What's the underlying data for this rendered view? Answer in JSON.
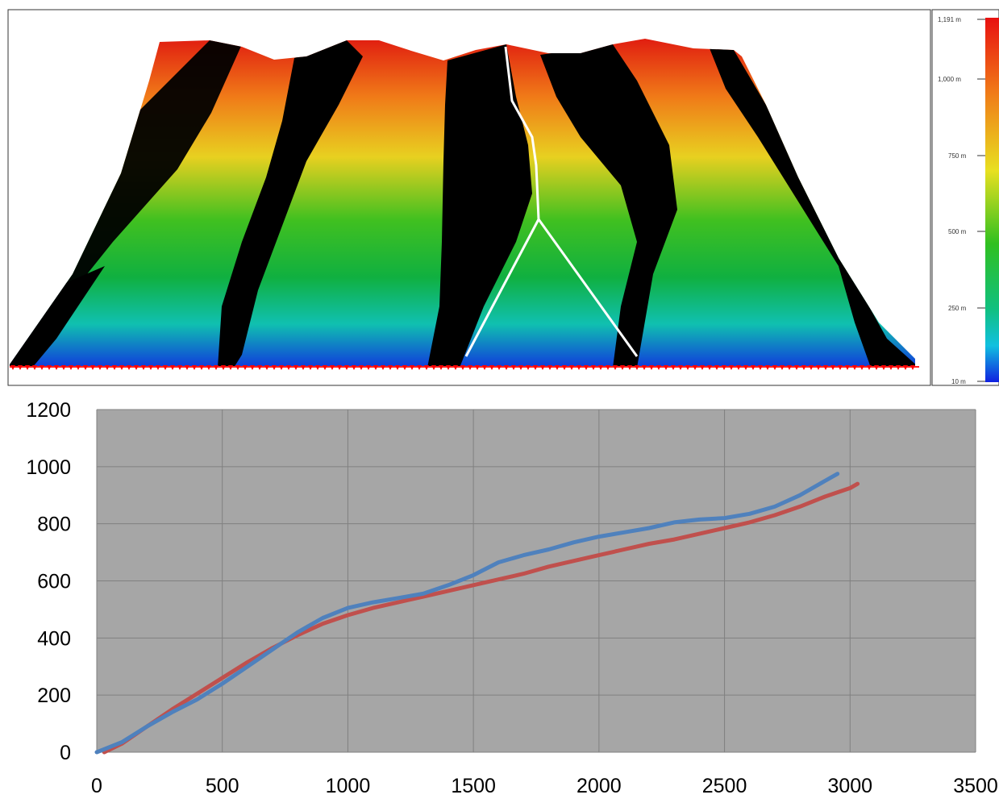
{
  "colorbar": {
    "labels": [
      "1,191 m",
      "1,000 m",
      "750 m",
      "500 m",
      "250 m",
      "10 m"
    ]
  },
  "colors": {
    "plot_background": "#a6a6a6",
    "grid": "#808080",
    "series_blue": "#4f81bd",
    "series_red": "#c0504d",
    "profile_line": "#ffffff",
    "baseline_markers": "#ff0000"
  },
  "chart_data": {
    "type": "line",
    "title": "",
    "xlabel": "",
    "ylabel": "",
    "xlim": [
      0,
      3500
    ],
    "ylim": [
      0,
      1200
    ],
    "x_ticks": [
      "0",
      "500",
      "1000",
      "1500",
      "2000",
      "2500",
      "3000",
      "3500"
    ],
    "y_ticks": [
      "0",
      "200",
      "400",
      "600",
      "800",
      "1000",
      "1200"
    ],
    "grid": true,
    "legend": "none",
    "series": [
      {
        "color": "#4f81bd",
        "points": [
          [
            0,
            0
          ],
          [
            100,
            35
          ],
          [
            200,
            90
          ],
          [
            300,
            140
          ],
          [
            400,
            185
          ],
          [
            500,
            240
          ],
          [
            600,
            300
          ],
          [
            700,
            360
          ],
          [
            800,
            420
          ],
          [
            900,
            470
          ],
          [
            1000,
            505
          ],
          [
            1100,
            525
          ],
          [
            1200,
            540
          ],
          [
            1300,
            555
          ],
          [
            1400,
            585
          ],
          [
            1500,
            620
          ],
          [
            1600,
            665
          ],
          [
            1700,
            690
          ],
          [
            1800,
            710
          ],
          [
            1900,
            735
          ],
          [
            2000,
            755
          ],
          [
            2100,
            770
          ],
          [
            2200,
            785
          ],
          [
            2300,
            805
          ],
          [
            2400,
            815
          ],
          [
            2500,
            820
          ],
          [
            2600,
            835
          ],
          [
            2700,
            860
          ],
          [
            2800,
            900
          ],
          [
            2900,
            950
          ],
          [
            2950,
            975
          ]
        ]
      },
      {
        "color": "#c0504d",
        "points": [
          [
            30,
            0
          ],
          [
            100,
            30
          ],
          [
            200,
            90
          ],
          [
            300,
            150
          ],
          [
            400,
            205
          ],
          [
            500,
            260
          ],
          [
            600,
            315
          ],
          [
            700,
            365
          ],
          [
            800,
            410
          ],
          [
            900,
            450
          ],
          [
            1000,
            480
          ],
          [
            1100,
            505
          ],
          [
            1200,
            525
          ],
          [
            1300,
            545
          ],
          [
            1400,
            565
          ],
          [
            1500,
            585
          ],
          [
            1600,
            605
          ],
          [
            1700,
            625
          ],
          [
            1800,
            650
          ],
          [
            1900,
            670
          ],
          [
            2000,
            690
          ],
          [
            2100,
            710
          ],
          [
            2200,
            730
          ],
          [
            2300,
            745
          ],
          [
            2400,
            765
          ],
          [
            2500,
            785
          ],
          [
            2600,
            805
          ],
          [
            2700,
            830
          ],
          [
            2800,
            860
          ],
          [
            2900,
            895
          ],
          [
            3000,
            925
          ],
          [
            3030,
            940
          ]
        ]
      }
    ]
  }
}
